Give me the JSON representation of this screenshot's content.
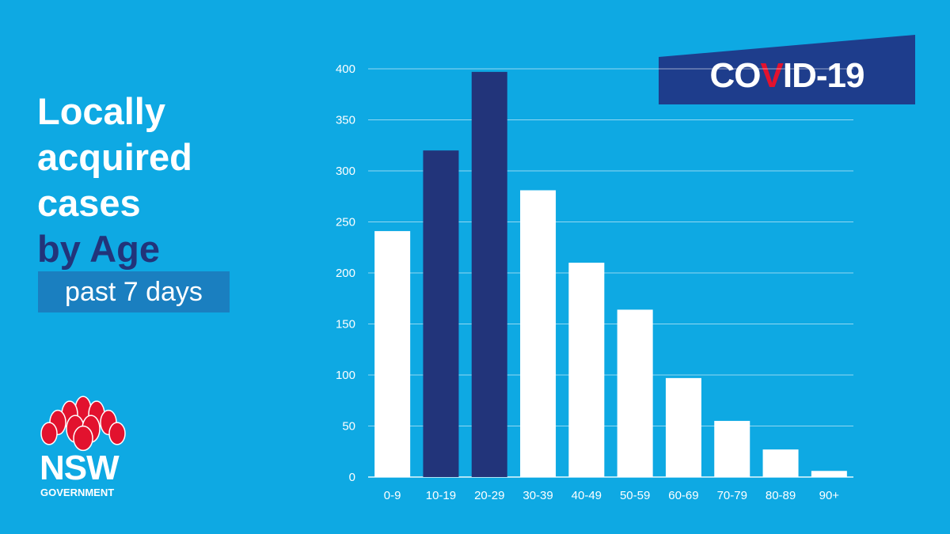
{
  "title": {
    "line1": "Locally",
    "line2": "acquired",
    "line3": "cases",
    "line4": "by Age"
  },
  "subtitle": "past 7 days",
  "badge": {
    "prefix": "CO",
    "highlight": "V",
    "suffix": "ID-19"
  },
  "logo": {
    "name": "NSW",
    "sub": "GOVERNMENT"
  },
  "colors": {
    "background": "#0ea9e3",
    "highlight_bar": "#22347a",
    "bar": "#ffffff",
    "badge": "#1e3d8c",
    "badge_v": "#e2122e",
    "waratah": "#e2122e",
    "subtitle_box": "#1a7fc0"
  },
  "chart_data": {
    "type": "bar",
    "categories": [
      "0-9",
      "10-19",
      "20-29",
      "30-39",
      "40-49",
      "50-59",
      "60-69",
      "70-79",
      "80-89",
      "90+"
    ],
    "values": [
      241,
      320,
      397,
      281,
      210,
      164,
      97,
      55,
      27,
      6
    ],
    "highlighted": [
      "10-19",
      "20-29"
    ],
    "yticks": [
      0,
      50,
      100,
      150,
      200,
      250,
      300,
      350,
      400
    ],
    "ylim": [
      0,
      400
    ],
    "grid": true,
    "title": "",
    "xlabel": "",
    "ylabel": ""
  }
}
